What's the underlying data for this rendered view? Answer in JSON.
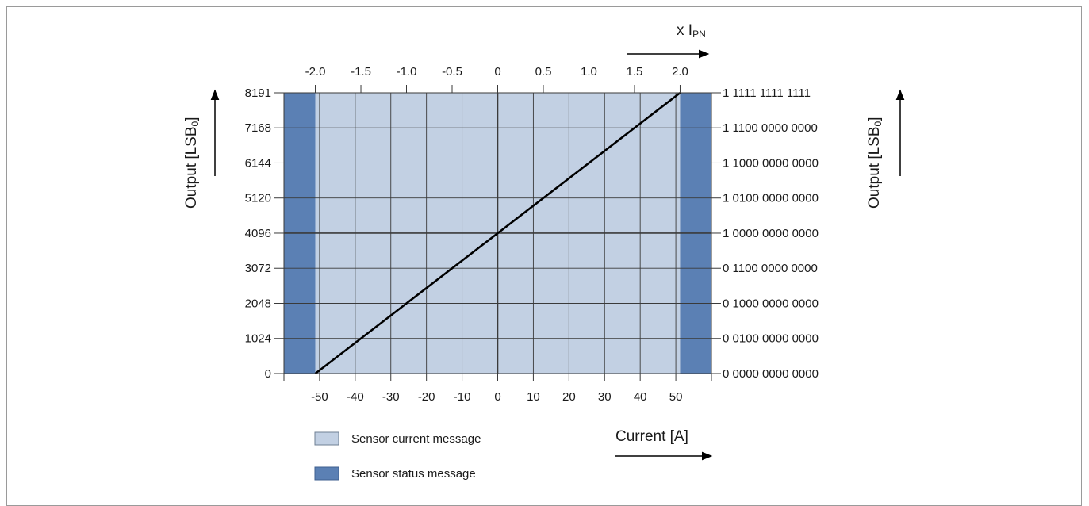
{
  "chart_data": {
    "type": "line",
    "x_bottom": {
      "label": "Current [A]",
      "ticks": [
        -50,
        -40,
        -30,
        -20,
        -10,
        0,
        10,
        20,
        30,
        40,
        50
      ],
      "tick_labels": [
        "-50",
        "-40",
        "-30",
        "-20",
        "-10",
        "0",
        "10",
        "20",
        "30",
        "40",
        "50"
      ],
      "range": [
        -60,
        60
      ]
    },
    "x_top": {
      "label_main": "x I",
      "label_sub": "PN",
      "ticks": [
        -2.0,
        -1.5,
        -1.0,
        -0.5,
        0,
        0.5,
        1.0,
        1.5,
        2.0
      ],
      "tick_labels": [
        "-2.0",
        "-1.5",
        "-1.0",
        "-0.5",
        "0",
        "0.5",
        "1.0",
        "1.5",
        "2.0"
      ],
      "scale_A_per_unit": 25.6
    },
    "y_left": {
      "label_main": "Output [LSB",
      "label_sub": "0",
      "label_end": "]",
      "ticks": [
        0,
        1024,
        2048,
        3072,
        4096,
        5120,
        6144,
        7168,
        8191
      ],
      "tick_labels": [
        "0",
        "1024",
        "2048",
        "3072",
        "4096",
        "5120",
        "6144",
        "7168",
        "8191"
      ],
      "range": [
        0,
        8191
      ]
    },
    "y_right": {
      "label_main": "Output [LSB",
      "label_sub": "0",
      "label_end": "]",
      "tick_labels": [
        "0 0000 0000 0000",
        "0 0100 0000 0000",
        "0 1000 0000 0000",
        "0 1100 0000 0000",
        "1 0000 0000 0000",
        "1 0100 0000 0000",
        "1 1000 0000 0000",
        "1 1100 0000 0000",
        "1 1111 1111 1111"
      ]
    },
    "series": [
      {
        "x": [
          -51.2,
          51.2
        ],
        "y": [
          0,
          8191
        ],
        "color": "#000000"
      }
    ],
    "regions": [
      {
        "name": "Sensor status message",
        "x_range": [
          -60,
          -51.2
        ],
        "color": "#5b80b4"
      },
      {
        "name": "Sensor current message",
        "x_range": [
          -51.2,
          51.2
        ],
        "color": "#c2d0e3"
      },
      {
        "name": "Sensor status message",
        "x_range": [
          51.2,
          60
        ],
        "color": "#5b80b4"
      }
    ],
    "legend": {
      "placement": "bottom-left",
      "entries": [
        {
          "label": "Sensor current message",
          "color": "#c2d0e3"
        },
        {
          "label": "Sensor status message",
          "color": "#5b80b4"
        }
      ]
    },
    "grid": true
  }
}
